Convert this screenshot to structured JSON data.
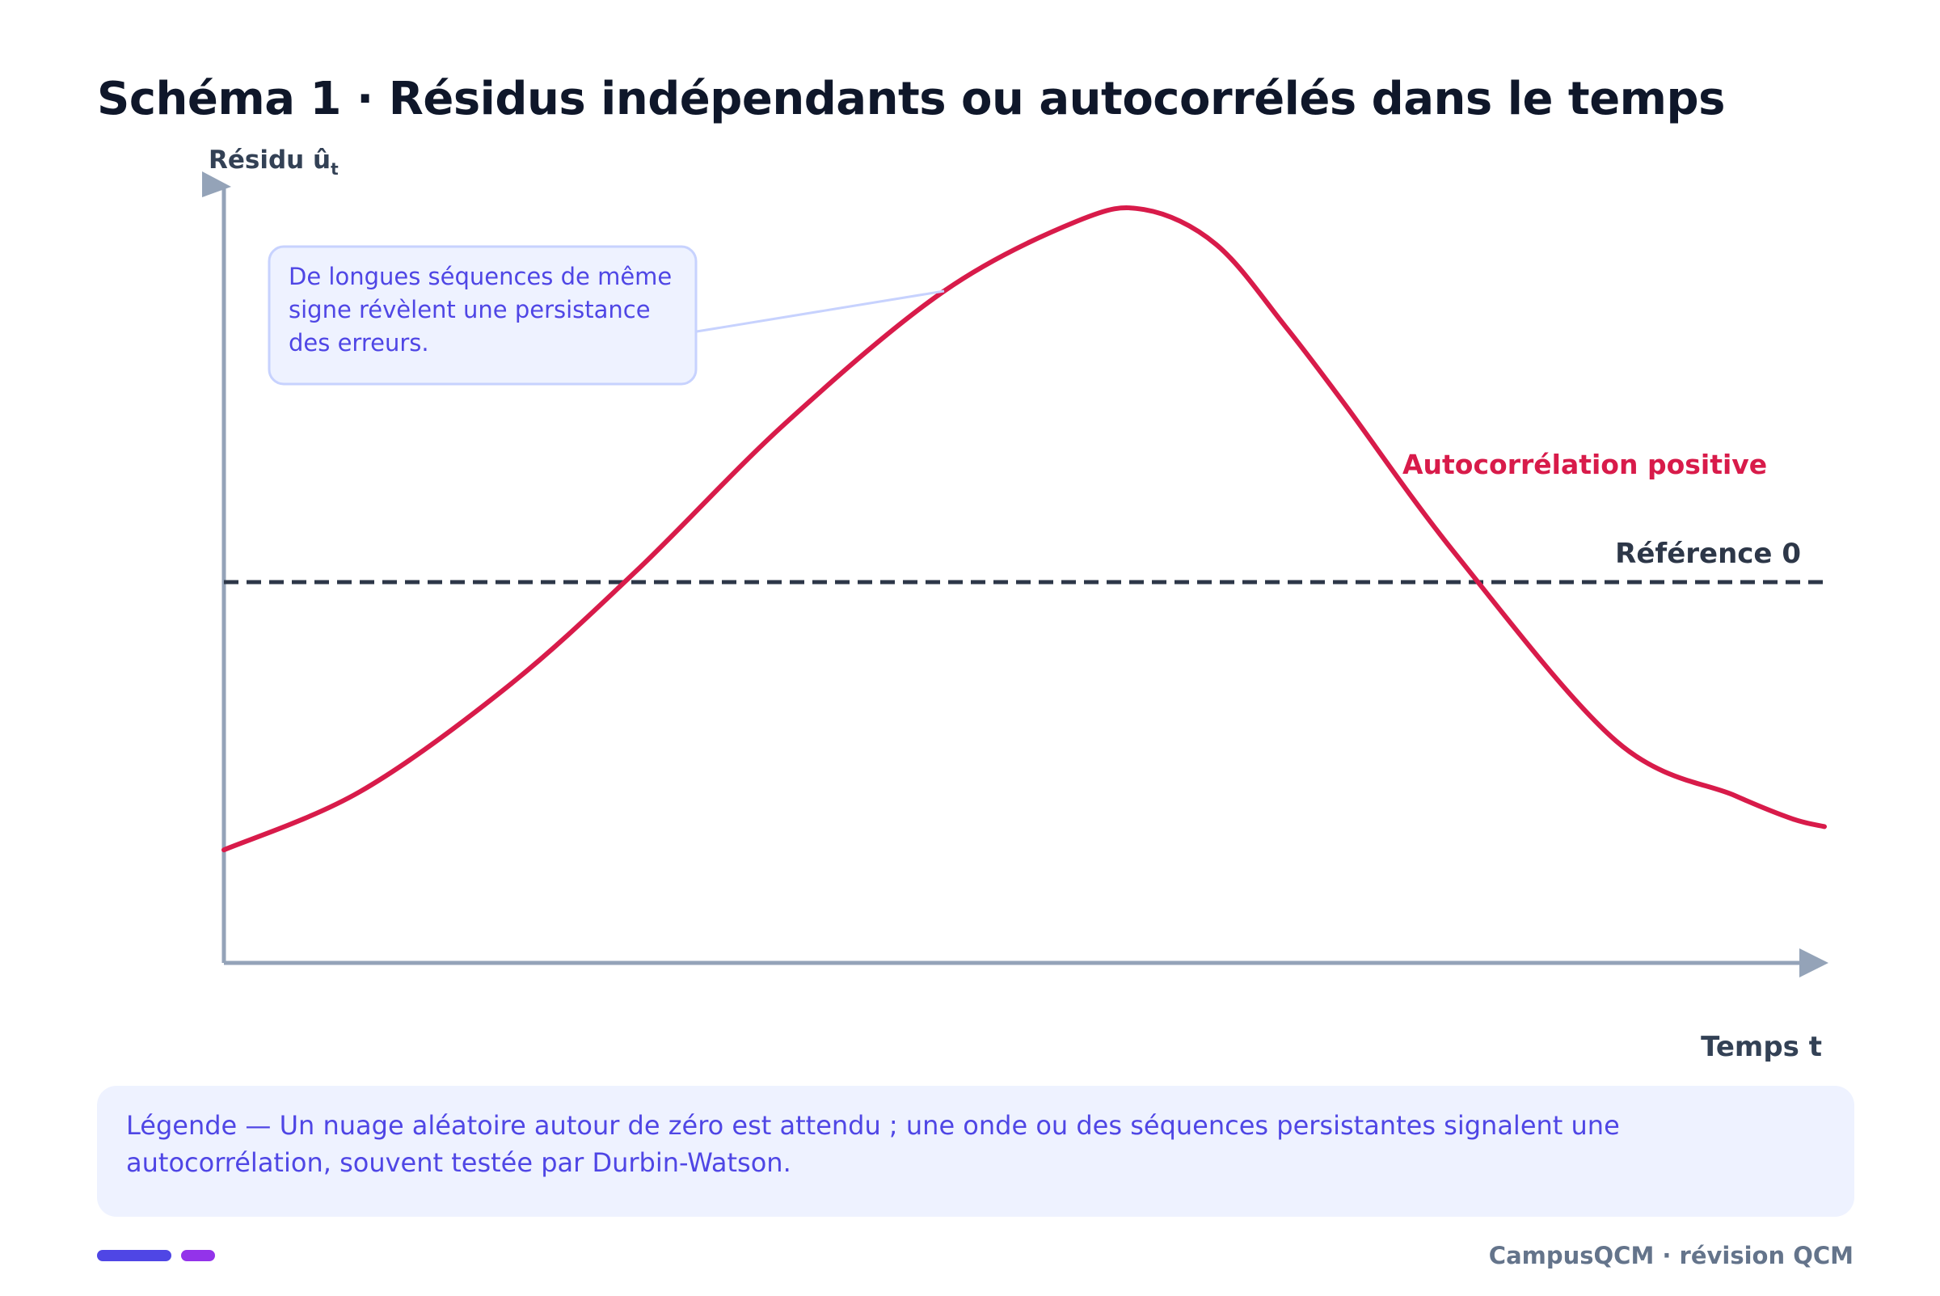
{
  "title": "Schéma 1 · Résidus indépendants ou autocorrélés dans le temps",
  "chart_data": {
    "type": "line",
    "title": "Schéma 1 · Résidus indépendants ou autocorrélés dans le temps",
    "ylabel_main": "Résidu û",
    "ylabel_sub": "t",
    "xlabel": "Temps t",
    "x": [
      0,
      0.085,
      0.177,
      0.258,
      0.351,
      0.45,
      0.533,
      0.575,
      0.62,
      0.663,
      0.7,
      0.77,
      0.87,
      0.944,
      0.98,
      1.0
    ],
    "series": [
      {
        "name": "Autocorrélation positive",
        "color": "#d81b4a",
        "values": [
          -0.69,
          -0.54,
          -0.27,
          0.03,
          0.41,
          0.75,
          0.93,
          0.96,
          0.87,
          0.66,
          0.46,
          0.07,
          -0.41,
          -0.55,
          -0.61,
          -0.63
        ]
      }
    ],
    "reference_line": {
      "label": "Référence 0",
      "value": 0,
      "style": "dashed",
      "color": "#2d3748"
    },
    "ylim": [
      -1.3,
      1.3
    ],
    "xlim": [
      0,
      1
    ],
    "grid": false,
    "annotation": {
      "text_lines": [
        "De longues séquences de même",
        "signe révèlent une persistance",
        "des erreurs."
      ],
      "target_x": 0.45
    }
  },
  "legend_text": "Légende — Un nuage aléatoire autour de zéro est attendu ; une onde ou des séquences persistantes signalent une autocorrélation, souvent testée par Durbin-Watson.",
  "footer": "CampusQCM · révision QCM",
  "colors": {
    "axis": "#94a3b8",
    "curve": "#d81b4a",
    "reference": "#2d3748",
    "callout_bg": "#eef2ff",
    "callout_border": "#c7d2fe",
    "callout_text": "#4f46e5",
    "accent_1": "#4f46e5",
    "accent_2": "#9333ea"
  }
}
